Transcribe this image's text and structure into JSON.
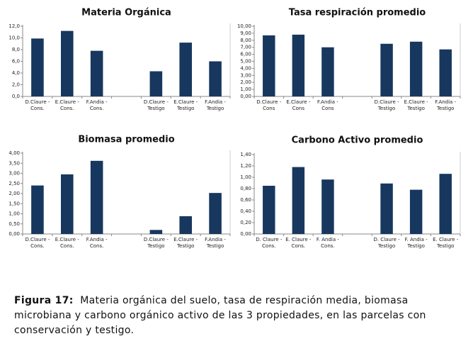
{
  "chart_data": [
    {
      "type": "bar",
      "title": "Materia Orgánica",
      "color": "#17375e",
      "categories": [
        "D.Claure - Cons.",
        "E.Claure - Cons.",
        "F.Andia - Cons.",
        null,
        "D.Claure - Testigo",
        "E.Claure - Testigo",
        "F.Andia - Testigo"
      ],
      "values": [
        9.9,
        11.2,
        7.8,
        null,
        4.3,
        9.2,
        6.0
      ],
      "ylim": [
        0,
        12
      ],
      "yticks": [
        {
          "value": 0,
          "label": "0,0"
        },
        {
          "value": 2,
          "label": "2,0"
        },
        {
          "value": 4,
          "label": "4,0"
        },
        {
          "value": 6,
          "label": "6,0"
        },
        {
          "value": 8,
          "label": "8,0"
        },
        {
          "value": 10,
          "label": "10,0"
        },
        {
          "value": 12,
          "label": "12,0"
        }
      ]
    },
    {
      "type": "bar",
      "title": "Tasa respiración promedio",
      "color": "#17375e",
      "categories": [
        "D.Claure - Cons",
        "E.Claure - Cons",
        "F.Andia - Cons",
        null,
        "D.Claure - Testigo",
        "E.Claure - Testigo",
        "F.Andia - Testigo"
      ],
      "values": [
        8.7,
        8.8,
        7.0,
        null,
        7.5,
        7.8,
        6.7
      ],
      "ylim": [
        0,
        10
      ],
      "yticks": [
        {
          "value": 0,
          "label": "0,00"
        },
        {
          "value": 1,
          "label": "1,00"
        },
        {
          "value": 2,
          "label": "2,00"
        },
        {
          "value": 3,
          "label": "3,00"
        },
        {
          "value": 4,
          "label": "4,00"
        },
        {
          "value": 5,
          "label": "5,00"
        },
        {
          "value": 6,
          "label": "6,00"
        },
        {
          "value": 7,
          "label": "7,00"
        },
        {
          "value": 8,
          "label": "8,00"
        },
        {
          "value": 9,
          "label": "9,00"
        },
        {
          "value": 10,
          "label": "10,00"
        }
      ]
    },
    {
      "type": "bar",
      "title": "Biomasa promedio",
      "color": "#17375e",
      "categories": [
        "D.Claure - Cons.",
        "E.Claure - Cons.",
        "F.Andia - Cons.",
        null,
        "D.Claure - Testigo",
        "E.Claure - Testigo",
        "F.Andia - Testigo"
      ],
      "values": [
        2.4,
        2.95,
        3.62,
        null,
        0.2,
        0.88,
        2.03
      ],
      "ylim": [
        0,
        4
      ],
      "yticks": [
        {
          "value": 0,
          "label": "0,00"
        },
        {
          "value": 0.5,
          "label": "0,50"
        },
        {
          "value": 1,
          "label": "1,00"
        },
        {
          "value": 1.5,
          "label": "1,50"
        },
        {
          "value": 2,
          "label": "2,00"
        },
        {
          "value": 2.5,
          "label": "2,50"
        },
        {
          "value": 3,
          "label": "3,00"
        },
        {
          "value": 3.5,
          "label": "3,50"
        },
        {
          "value": 4,
          "label": "4,00"
        }
      ]
    },
    {
      "type": "bar",
      "title": "Carbono Activo promedio",
      "color": "#17375e",
      "categories": [
        "D. Claure - Cons.",
        "E. Claure - Cons.",
        "F. Andia - Cons.",
        null,
        "D. Claure - Testigo",
        "F. Andia - Testigo",
        "E. Claure - Testigo"
      ],
      "values": [
        0.85,
        1.18,
        0.96,
        null,
        0.89,
        0.78,
        1.06
      ],
      "ylim": [
        0,
        1.4
      ],
      "yticks": [
        {
          "value": 0,
          "label": "0,00"
        },
        {
          "value": 0.2,
          "label": "0,20"
        },
        {
          "value": 0.4,
          "label": "0,40"
        },
        {
          "value": 0.6,
          "label": "0,60"
        },
        {
          "value": 0.8,
          "label": "0,80"
        },
        {
          "value": 1,
          "label": "1,00"
        },
        {
          "value": 1.2,
          "label": "1,20"
        },
        {
          "value": 1.4,
          "label": "1,40"
        }
      ]
    }
  ],
  "caption": {
    "label": "Figura 17",
    "text": "Materia orgánica del suelo, tasa de respiración media, biomasa microbiana  y carbono orgánico activo de las 3 propiedades, en las parcelas con conservación  y testigo."
  }
}
